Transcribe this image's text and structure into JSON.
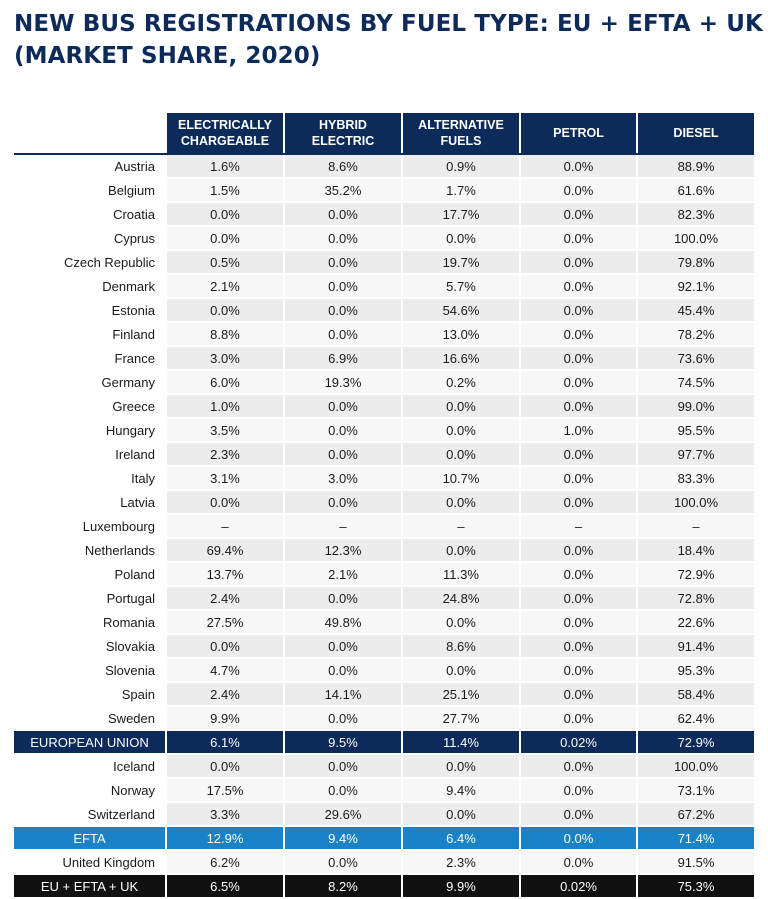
{
  "title": {
    "line1": "NEW BUS REGISTRATIONS BY FUEL TYPE: EU + EFTA + UK",
    "line2": "(MARKET SHARE, 2020)"
  },
  "headers": [
    [
      "ELECTRICALLY",
      "CHARGEABLE"
    ],
    [
      "HYBRID",
      "ELECTRIC"
    ],
    [
      "ALTERNATIVE",
      "FUELS"
    ],
    [
      "PETROL",
      ""
    ],
    [
      "DIESEL",
      ""
    ]
  ],
  "rows": [
    {
      "country": "Austria",
      "values": [
        "1.6%",
        "8.6%",
        "0.9%",
        "0.0%",
        "88.9%"
      ]
    },
    {
      "country": "Belgium",
      "values": [
        "1.5%",
        "35.2%",
        "1.7%",
        "0.0%",
        "61.6%"
      ]
    },
    {
      "country": "Croatia",
      "values": [
        "0.0%",
        "0.0%",
        "17.7%",
        "0.0%",
        "82.3%"
      ]
    },
    {
      "country": "Cyprus",
      "values": [
        "0.0%",
        "0.0%",
        "0.0%",
        "0.0%",
        "100.0%"
      ]
    },
    {
      "country": "Czech Republic",
      "values": [
        "0.5%",
        "0.0%",
        "19.7%",
        "0.0%",
        "79.8%"
      ]
    },
    {
      "country": "Denmark",
      "values": [
        "2.1%",
        "0.0%",
        "5.7%",
        "0.0%",
        "92.1%"
      ]
    },
    {
      "country": "Estonia",
      "values": [
        "0.0%",
        "0.0%",
        "54.6%",
        "0.0%",
        "45.4%"
      ]
    },
    {
      "country": "Finland",
      "values": [
        "8.8%",
        "0.0%",
        "13.0%",
        "0.0%",
        "78.2%"
      ]
    },
    {
      "country": "France",
      "values": [
        "3.0%",
        "6.9%",
        "16.6%",
        "0.0%",
        "73.6%"
      ]
    },
    {
      "country": "Germany",
      "values": [
        "6.0%",
        "19.3%",
        "0.2%",
        "0.0%",
        "74.5%"
      ]
    },
    {
      "country": "Greece",
      "values": [
        "1.0%",
        "0.0%",
        "0.0%",
        "0.0%",
        "99.0%"
      ]
    },
    {
      "country": "Hungary",
      "values": [
        "3.5%",
        "0.0%",
        "0.0%",
        "1.0%",
        "95.5%"
      ]
    },
    {
      "country": "Ireland",
      "values": [
        "2.3%",
        "0.0%",
        "0.0%",
        "0.0%",
        "97.7%"
      ]
    },
    {
      "country": "Italy",
      "values": [
        "3.1%",
        "3.0%",
        "10.7%",
        "0.0%",
        "83.3%"
      ]
    },
    {
      "country": "Latvia",
      "values": [
        "0.0%",
        "0.0%",
        "0.0%",
        "0.0%",
        "100.0%"
      ]
    },
    {
      "country": "Luxembourg",
      "values": [
        "–",
        "–",
        "–",
        "–",
        "–"
      ]
    },
    {
      "country": "Netherlands",
      "values": [
        "69.4%",
        "12.3%",
        "0.0%",
        "0.0%",
        "18.4%"
      ]
    },
    {
      "country": "Poland",
      "values": [
        "13.7%",
        "2.1%",
        "11.3%",
        "0.0%",
        "72.9%"
      ]
    },
    {
      "country": "Portugal",
      "values": [
        "2.4%",
        "0.0%",
        "24.8%",
        "0.0%",
        "72.8%"
      ]
    },
    {
      "country": "Romania",
      "values": [
        "27.5%",
        "49.8%",
        "0.0%",
        "0.0%",
        "22.6%"
      ]
    },
    {
      "country": "Slovakia",
      "values": [
        "0.0%",
        "0.0%",
        "8.6%",
        "0.0%",
        "91.4%"
      ]
    },
    {
      "country": "Slovenia",
      "values": [
        "4.7%",
        "0.0%",
        "0.0%",
        "0.0%",
        "95.3%"
      ]
    },
    {
      "country": "Spain",
      "values": [
        "2.4%",
        "14.1%",
        "25.1%",
        "0.0%",
        "58.4%"
      ]
    },
    {
      "country": "Sweden",
      "values": [
        "9.9%",
        "0.0%",
        "27.7%",
        "0.0%",
        "62.4%"
      ]
    },
    {
      "country": "EUROPEAN UNION",
      "values": [
        "6.1%",
        "9.5%",
        "11.4%",
        "0.02%",
        "72.9%"
      ],
      "type": "eu"
    },
    {
      "country": "Iceland",
      "values": [
        "0.0%",
        "0.0%",
        "0.0%",
        "0.0%",
        "100.0%"
      ]
    },
    {
      "country": "Norway",
      "values": [
        "17.5%",
        "0.0%",
        "9.4%",
        "0.0%",
        "73.1%"
      ]
    },
    {
      "country": "Switzerland",
      "values": [
        "3.3%",
        "29.6%",
        "0.0%",
        "0.0%",
        "67.2%"
      ]
    },
    {
      "country": "EFTA",
      "values": [
        "12.9%",
        "9.4%",
        "6.4%",
        "0.0%",
        "71.4%"
      ],
      "type": "efta"
    },
    {
      "country": "United Kingdom",
      "values": [
        "6.2%",
        "0.0%",
        "2.3%",
        "0.0%",
        "91.5%"
      ]
    },
    {
      "country": "EU + EFTA + UK",
      "values": [
        "6.5%",
        "8.2%",
        "9.9%",
        "0.02%",
        "75.3%"
      ],
      "type": "total"
    }
  ],
  "colors": {
    "navy": "#0c2a5a",
    "efta_blue": "#1a82c6",
    "total_black": "#111111",
    "stripe_dark": "#ececec",
    "stripe_light": "#f7f7f7"
  }
}
